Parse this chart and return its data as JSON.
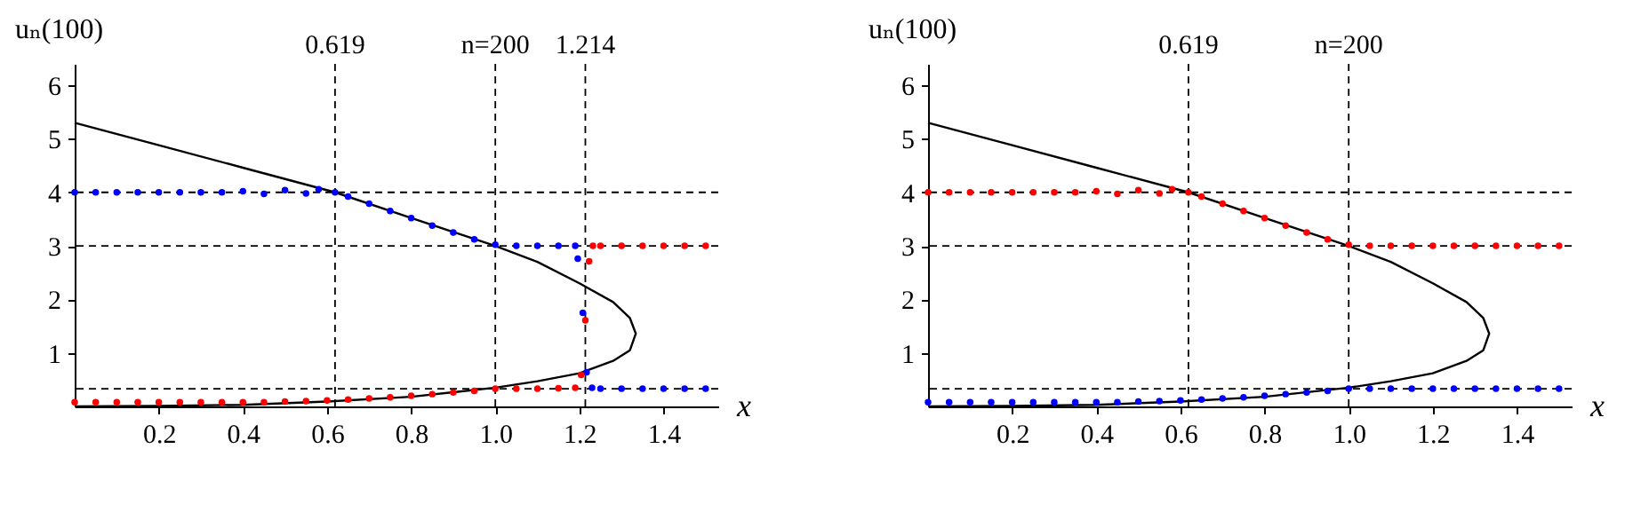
{
  "chart_data": [
    {
      "type": "scatter",
      "ylabel": "uₙ(100)",
      "xlabel": "x",
      "xlim": [
        0,
        1.53
      ],
      "ylim": [
        0,
        6.4
      ],
      "xticks": [
        0.2,
        0.4,
        0.6,
        0.8,
        {
          "value": 1,
          "label": "1.0"
        },
        1.2,
        1.4
      ],
      "yticks": [
        1,
        2,
        3,
        4,
        5,
        6
      ],
      "marker": "circle",
      "annotations": [
        "n=200"
      ],
      "series": [
        {
          "type": "line",
          "marker": "none",
          "color": "#000000",
          "x": [
            0,
            0.2,
            0.4,
            0.619,
            0.8,
            1.0,
            1.1,
            1.2,
            1.28,
            1.32,
            1.334,
            1.32,
            1.28,
            1.2,
            1.1,
            1.0,
            0.8,
            0.6,
            0.4,
            0.2,
            0
          ],
          "values": [
            5.3,
            4.88,
            4.46,
            4.0,
            3.52,
            3.0,
            2.7,
            2.3,
            1.95,
            1.65,
            1.36,
            1.05,
            0.85,
            0.62,
            0.47,
            0.35,
            0.18,
            0.09,
            0.03,
            0.01,
            0
          ]
        },
        {
          "color": "#0000ff",
          "x": [
            0,
            0.05,
            0.1,
            0.15,
            0.2,
            0.25,
            0.3,
            0.35,
            0.4,
            0.45,
            0.5,
            0.55,
            0.58,
            0.619,
            0.65,
            0.7,
            0.75,
            0.8,
            0.85,
            0.9,
            0.95,
            1.0,
            1.05,
            1.1,
            1.15,
            1.19,
            1.196,
            1.208,
            1.217,
            1.23,
            1.25,
            1.3,
            1.35,
            1.4,
            1.45,
            1.5
          ],
          "values": [
            4,
            4,
            4,
            4,
            4,
            4,
            4,
            4,
            4.02,
            3.97,
            4.04,
            3.98,
            4.06,
            4.0,
            3.92,
            3.79,
            3.65,
            3.52,
            3.38,
            3.25,
            3.12,
            3.02,
            3.0,
            3.0,
            3.0,
            3.0,
            2.76,
            1.75,
            0.64,
            0.35,
            0.33,
            0.33,
            0.33,
            0.33,
            0.33,
            0.33
          ]
        },
        {
          "color": "#ff0000",
          "x": [
            0,
            0.05,
            0.1,
            0.15,
            0.2,
            0.25,
            0.3,
            0.35,
            0.4,
            0.45,
            0.5,
            0.55,
            0.6,
            0.65,
            0.7,
            0.75,
            0.8,
            0.85,
            0.9,
            0.95,
            1.0,
            1.05,
            1.1,
            1.15,
            1.19,
            1.204,
            1.214,
            1.223,
            1.232,
            1.25,
            1.3,
            1.35,
            1.4,
            1.45,
            1.5
          ],
          "values": [
            0.08,
            0.08,
            0.08,
            0.08,
            0.08,
            0.08,
            0.08,
            0.08,
            0.08,
            0.08,
            0.09,
            0.1,
            0.11,
            0.13,
            0.15,
            0.17,
            0.2,
            0.23,
            0.26,
            0.29,
            0.33,
            0.33,
            0.33,
            0.34,
            0.35,
            0.59,
            1.61,
            2.71,
            3.0,
            3.0,
            3.0,
            3.0,
            3.0,
            3.0,
            3.0
          ]
        }
      ],
      "ref_lines": [
        {
          "axis": "x",
          "value": 0.619,
          "label": "0.619",
          "line_style": "dashed"
        },
        {
          "axis": "x",
          "value": 1.0,
          "line_style": "dashed"
        },
        {
          "axis": "x",
          "value": 1.214,
          "label": "1.214",
          "line_style": "dashed"
        },
        {
          "axis": "y",
          "value": 4,
          "line_style": "dashed"
        },
        {
          "axis": "y",
          "value": 3,
          "line_style": "dashed"
        },
        {
          "axis": "y",
          "value": 0.33,
          "line_style": "dashed"
        }
      ]
    },
    {
      "type": "scatter",
      "ylabel": "uₙ(100)",
      "xlabel": "x",
      "xlim": [
        0,
        1.53
      ],
      "ylim": [
        0,
        6.4
      ],
      "xticks": [
        0.2,
        0.4,
        0.6,
        0.8,
        {
          "value": 1,
          "label": "1.0"
        },
        1.2,
        1.4
      ],
      "yticks": [
        1,
        2,
        3,
        4,
        5,
        6
      ],
      "marker": "circle",
      "annotations": [
        "n=200"
      ],
      "series": [
        {
          "type": "line",
          "marker": "none",
          "color": "#000000",
          "x": [
            0,
            0.2,
            0.4,
            0.619,
            0.8,
            1.0,
            1.1,
            1.2,
            1.28,
            1.32,
            1.334,
            1.32,
            1.28,
            1.2,
            1.1,
            1.0,
            0.8,
            0.6,
            0.4,
            0.2,
            0
          ],
          "values": [
            5.3,
            4.88,
            4.46,
            4.0,
            3.52,
            3.0,
            2.7,
            2.3,
            1.95,
            1.65,
            1.36,
            1.05,
            0.85,
            0.62,
            0.47,
            0.35,
            0.18,
            0.09,
            0.03,
            0.01,
            0
          ]
        },
        {
          "color": "#ff0000",
          "x": [
            0,
            0.05,
            0.1,
            0.15,
            0.2,
            0.25,
            0.3,
            0.35,
            0.4,
            0.45,
            0.5,
            0.55,
            0.58,
            0.619,
            0.65,
            0.7,
            0.75,
            0.8,
            0.85,
            0.9,
            0.95,
            1.0,
            1.05,
            1.1,
            1.15,
            1.2,
            1.25,
            1.3,
            1.35,
            1.4,
            1.45,
            1.5
          ],
          "values": [
            4,
            4,
            4,
            4,
            4,
            4,
            4,
            4,
            4.02,
            3.97,
            4.04,
            3.98,
            4.06,
            4.0,
            3.92,
            3.79,
            3.65,
            3.52,
            3.38,
            3.25,
            3.12,
            3.02,
            3.0,
            3.0,
            3.0,
            3.0,
            3.0,
            3.0,
            3.0,
            3.0,
            3.0,
            3.0
          ]
        },
        {
          "color": "#0000ff",
          "x": [
            0,
            0.05,
            0.1,
            0.15,
            0.2,
            0.25,
            0.3,
            0.35,
            0.4,
            0.45,
            0.5,
            0.55,
            0.6,
            0.65,
            0.7,
            0.75,
            0.8,
            0.85,
            0.9,
            0.95,
            1.0,
            1.05,
            1.1,
            1.15,
            1.2,
            1.25,
            1.3,
            1.35,
            1.4,
            1.45,
            1.5
          ],
          "values": [
            0.08,
            0.08,
            0.08,
            0.08,
            0.08,
            0.08,
            0.08,
            0.08,
            0.08,
            0.08,
            0.09,
            0.1,
            0.11,
            0.13,
            0.15,
            0.17,
            0.2,
            0.23,
            0.26,
            0.29,
            0.33,
            0.33,
            0.33,
            0.33,
            0.33,
            0.33,
            0.33,
            0.33,
            0.33,
            0.33,
            0.33
          ]
        }
      ],
      "ref_lines": [
        {
          "axis": "x",
          "value": 0.619,
          "label": "0.619",
          "line_style": "dashed"
        },
        {
          "axis": "x",
          "value": 1.0,
          "line_style": "dashed"
        },
        {
          "axis": "y",
          "value": 4,
          "line_style": "dashed"
        },
        {
          "axis": "y",
          "value": 3,
          "line_style": "dashed"
        },
        {
          "axis": "y",
          "value": 0.33,
          "line_style": "dashed"
        }
      ]
    }
  ]
}
